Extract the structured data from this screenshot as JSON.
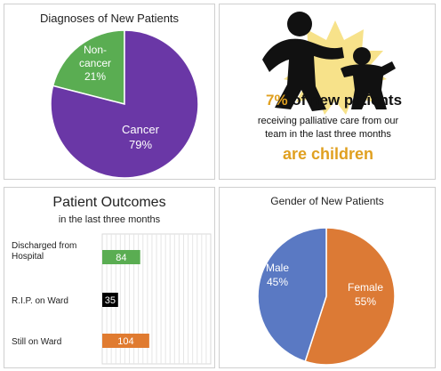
{
  "chart_data": [
    {
      "type": "pie",
      "title": "Diagnoses of New Patients",
      "slices": [
        {
          "label": "Non-cancer",
          "value": 21,
          "color": "#5aad52"
        },
        {
          "label": "Cancer",
          "value": 79,
          "color": "#6a37a6"
        }
      ]
    },
    {
      "type": "bar",
      "orientation": "horizontal",
      "title": "Patient Outcomes",
      "subtitle": "in the last three months",
      "categories": [
        "Discharged from Hospital",
        "R.I.P. on Ward",
        "Still on Ward"
      ],
      "values": [
        84,
        35,
        104
      ],
      "colors": [
        "#5aad52",
        "#000000",
        "#e07b30"
      ],
      "xlim": [
        0,
        240
      ],
      "grid": true
    },
    {
      "type": "pie",
      "title": "Gender of New Patients",
      "slices": [
        {
          "label": "Female",
          "value": 55,
          "color": "#dc7a35"
        },
        {
          "label": "Male",
          "value": 45,
          "color": "#5a79c3"
        }
      ]
    }
  ],
  "diagnoses": {
    "title": "Diagnoses of New Patients",
    "noncancer_label_line1": "Non-",
    "noncancer_label_line2": "cancer",
    "noncancer_pct": "21%",
    "cancer_label": "Cancer",
    "cancer_pct": "79%"
  },
  "infographic": {
    "headline_pct": "7%",
    "headline_rest": " of new patients",
    "line2": "receiving palliative care from our",
    "line3": "team in the last three months",
    "line4": "are children",
    "colors": {
      "accent": "#e0a020",
      "sun": "#f7e28a",
      "figures": "#111111"
    },
    "icon": "adult-and-child-figures-icon"
  },
  "outcomes": {
    "title": "Patient Outcomes",
    "subtitle": "in the last three months",
    "labels": [
      {
        "line1": "Discharged from",
        "line2": "Hospital"
      },
      {
        "line1": "R.I.P. on Ward",
        "line2": ""
      },
      {
        "line1": "Still on Ward",
        "line2": ""
      }
    ],
    "values": [
      "84",
      "35",
      "104"
    ]
  },
  "gender": {
    "title": "Gender of New Patients",
    "male_label": "Male",
    "male_pct": "45%",
    "female_label": "Female",
    "female_pct": "55%"
  }
}
